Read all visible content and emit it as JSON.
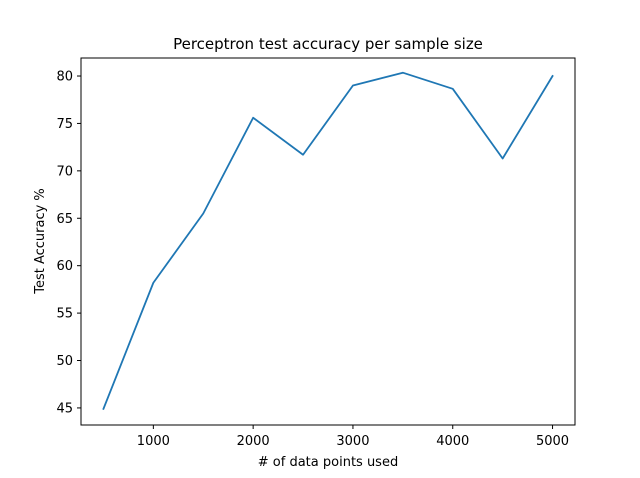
{
  "chart_data": {
    "type": "line",
    "title": "Perceptron test accuracy per sample size",
    "xlabel": "# of data points used",
    "ylabel": "Test Accuracy %",
    "x": [
      500,
      1000,
      1500,
      2000,
      2500,
      3000,
      3500,
      4000,
      4500,
      5000
    ],
    "series": [
      {
        "values": [
          44.9,
          58.2,
          65.5,
          75.6,
          71.7,
          79.0,
          80.35,
          78.65,
          71.3,
          80.0
        ]
      }
    ],
    "xlim": [
      275,
      5225
    ],
    "ylim": [
      43.2,
      81.9
    ],
    "xticks": [
      "1000",
      "2000",
      "3000",
      "4000",
      "5000"
    ],
    "yticks": [
      "45",
      "50",
      "55",
      "60",
      "65",
      "70",
      "75",
      "80"
    ],
    "grid": false,
    "line_color": "#1f77b4"
  }
}
